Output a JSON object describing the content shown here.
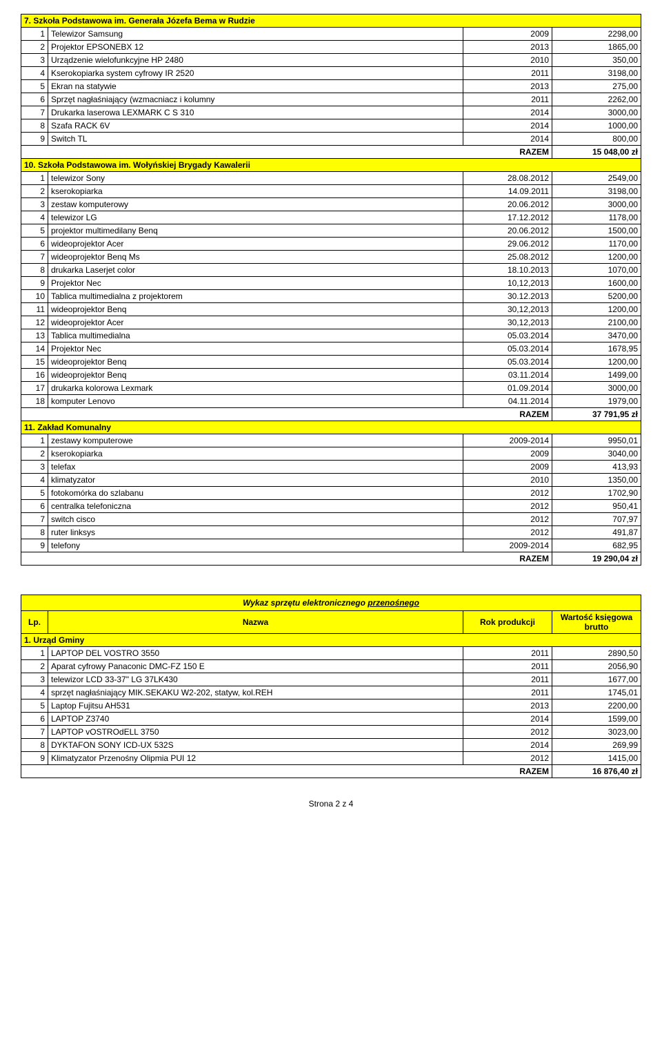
{
  "sections": [
    {
      "title": "7. Szkoła Podstawowa im. Generała Józefa Bema w Rudzie",
      "rows": [
        [
          "1",
          "Telewizor Samsung",
          "2009",
          "2298,00"
        ],
        [
          "2",
          "Projektor EPSONEBX 12",
          "2013",
          "1865,00"
        ],
        [
          "3",
          "Urządzenie wielofunkcyjne HP 2480",
          "2010",
          "350,00"
        ],
        [
          "4",
          "Kserokopiarka system cyfrowy IR 2520",
          "2011",
          "3198,00"
        ],
        [
          "5",
          "Ekran na statywie",
          "2013",
          "275,00"
        ],
        [
          "6",
          "Sprzęt nagłaśniający (wzmacniacz i kolumny",
          "2011",
          "2262,00"
        ],
        [
          "7",
          "Drukarka laserowa LEXMARK C S 310",
          "2014",
          "3000,00"
        ],
        [
          "8",
          "Szafa RACK 6V",
          "2014",
          "1000,00"
        ],
        [
          "9",
          "Switch TL",
          "2014",
          "800,00"
        ]
      ],
      "razem": "15 048,00 zł"
    },
    {
      "title": "10. Szkoła Podstawowa im. Wołyńskiej Brygady Kawalerii",
      "rows": [
        [
          "1",
          "telewizor Sony",
          "28.08.2012",
          "2549,00"
        ],
        [
          "2",
          "kserokopiarka",
          "14.09.2011",
          "3198,00"
        ],
        [
          "3",
          "zestaw komputerowy",
          "20.06.2012",
          "3000,00"
        ],
        [
          "4",
          "telewizor LG",
          "17.12.2012",
          "1178,00"
        ],
        [
          "5",
          "projektor multimedilany Benq",
          "20.06.2012",
          "1500,00"
        ],
        [
          "6",
          "wideoprojektor Acer",
          "29.06.2012",
          "1170,00"
        ],
        [
          "7",
          "wideoprojektor Benq Ms",
          "25.08.2012",
          "1200,00"
        ],
        [
          "8",
          "drukarka Laserjet color",
          "18.10.2013",
          "1070,00"
        ],
        [
          "9",
          "Projektor Nec",
          "10,12,2013",
          "1600,00"
        ],
        [
          "10",
          "Tablica multimedialna z projektorem",
          "30.12.2013",
          "5200,00"
        ],
        [
          "11",
          "wideoprojektor Benq",
          "30,12,2013",
          "1200,00"
        ],
        [
          "12",
          "wideoprojektor Acer",
          "30,12,2013",
          "2100,00"
        ],
        [
          "13",
          "Tablica multimedialna",
          "05.03.2014",
          "3470,00"
        ],
        [
          "14",
          "Projektor Nec",
          "05.03.2014",
          "1678,95"
        ],
        [
          "15",
          "wideoprojektor Benq",
          "05.03.2014",
          "1200,00"
        ],
        [
          "16",
          "wideoprojektor Benq",
          "03.11.2014",
          "1499,00"
        ],
        [
          "17",
          "drukarka kolorowa Lexmark",
          "01.09.2014",
          "3000,00"
        ],
        [
          "18",
          "komputer Lenovo",
          "04.11.2014",
          "1979,00"
        ]
      ],
      "razem": "37 791,95 zł"
    },
    {
      "title": "11. Zakład Komunalny",
      "rows": [
        [
          "1",
          "zestawy komputerowe",
          "2009-2014",
          "9950,01"
        ],
        [
          "2",
          "kserokopiarka",
          "2009",
          "3040,00"
        ],
        [
          "3",
          "telefax",
          "2009",
          "413,93"
        ],
        [
          "4",
          "klimatyzator",
          "2010",
          "1350,00"
        ],
        [
          "5",
          "fotokomórka do szlabanu",
          "2012",
          "1702,90"
        ],
        [
          "6",
          "centralka telefoniczna",
          "2012",
          "950,41"
        ],
        [
          "7",
          "switch cisco",
          "2012",
          "707,97"
        ],
        [
          "8",
          "ruter linksys",
          "2012",
          "491,87"
        ],
        [
          "9",
          "telefony",
          "2009-2014",
          "682,95"
        ]
      ],
      "razem": "19 290,04 zł"
    }
  ],
  "table2": {
    "title": "Wykaz sprzętu elektronicznego przenośnego",
    "title_underline": "przenośnego",
    "headers": [
      "Lp.",
      "Nazwa",
      "Rok produkcji",
      "Wartość księgowa brutto"
    ],
    "section_title": "1. Urząd Gminy",
    "rows": [
      [
        "1",
        "LAPTOP DEL VOSTRO 3550",
        "2011",
        "2890,50"
      ],
      [
        "2",
        "Aparat cyfrowy Panaconic DMC-FZ 150 E",
        "2011",
        "2056,90"
      ],
      [
        "3",
        "telewizor LCD 33-37\" LG 37LK430",
        "2011",
        "1677,00"
      ],
      [
        "4",
        "sprzęt nagłaśniający MIK.SEKAKU W2-202, statyw, kol.REH",
        "2011",
        "1745,01"
      ],
      [
        "5",
        "Laptop Fujitsu AH531",
        "2013",
        "2200,00"
      ],
      [
        "6",
        "LAPTOP Z3740",
        "2014",
        "1599,00"
      ],
      [
        "7",
        "LAPTOP vOSTROdELL 3750",
        "2012",
        "3023,00"
      ],
      [
        "8",
        "DYKTAFON SONY ICD-UX 532S",
        "2014",
        "269,99"
      ],
      [
        "9",
        "Klimatyzator Przenośny Olipmia PUI 12",
        "2012",
        "1415,00"
      ]
    ],
    "razem": "16 876,40 zł"
  },
  "razem_label": "RAZEM",
  "footer": "Strona 2 z 4"
}
